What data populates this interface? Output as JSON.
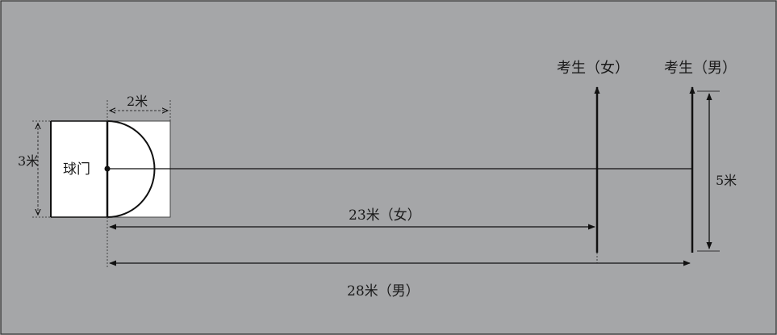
{
  "labels": {
    "goal": "球门",
    "width_3m": "3米",
    "depth_2m": "2米",
    "depth_5m": "5米",
    "dist_female": "23米（女）",
    "dist_male": "28米（男）",
    "candidate_female": "考生（女）",
    "candidate_male": "考生（男）"
  },
  "colors": {
    "background": "#a5a6a8",
    "frame": "#3a3a3a",
    "line": "#111111",
    "goal_fill": "#ffffff"
  }
}
